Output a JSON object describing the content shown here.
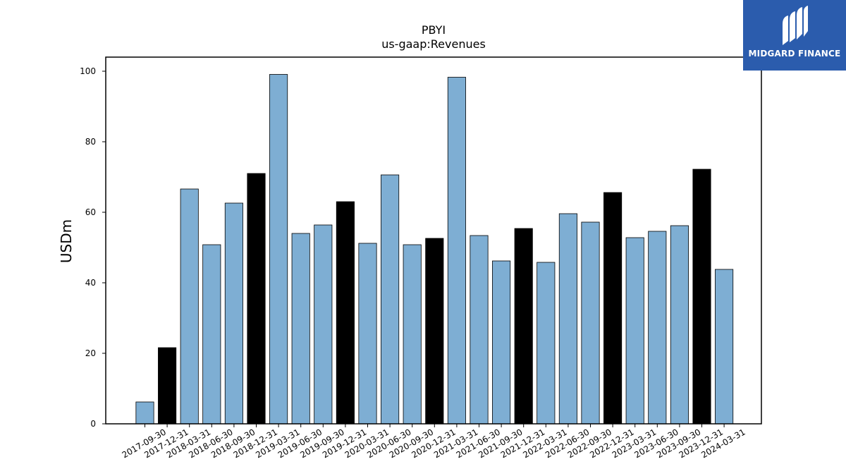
{
  "chart_data": {
    "type": "bar",
    "title": "PBYI",
    "subtitle": "us-gaap:Revenues",
    "xlabel": "",
    "ylabel": "USDm",
    "ylim": [
      0,
      104
    ],
    "yticks": [
      0,
      20,
      40,
      60,
      80,
      100
    ],
    "grid": false,
    "categories": [
      "2017-09-30",
      "2017-12-31",
      "2018-03-31",
      "2018-06-30",
      "2018-09-30",
      "2018-12-31",
      "2019-03-31",
      "2019-06-30",
      "2019-09-30",
      "2019-12-31",
      "2020-03-31",
      "2020-06-30",
      "2020-09-30",
      "2020-12-31",
      "2021-03-31",
      "2021-06-30",
      "2021-09-30",
      "2021-12-31",
      "2022-03-31",
      "2022-06-30",
      "2022-09-30",
      "2022-12-31",
      "2023-03-31",
      "2023-06-30",
      "2023-09-30",
      "2023-12-31",
      "2024-03-31"
    ],
    "values": [
      6.2,
      21.6,
      66.6,
      50.8,
      62.6,
      71.0,
      99.1,
      54.0,
      56.4,
      63.0,
      51.2,
      70.6,
      50.8,
      52.6,
      98.3,
      53.4,
      46.2,
      55.4,
      45.8,
      59.6,
      57.2,
      65.6,
      52.8,
      54.6,
      56.2,
      72.2,
      43.8
    ],
    "annual_flags": [
      false,
      true,
      false,
      false,
      false,
      true,
      false,
      false,
      false,
      true,
      false,
      false,
      false,
      true,
      false,
      false,
      false,
      true,
      false,
      false,
      false,
      true,
      false,
      false,
      false,
      true,
      false
    ],
    "colors": {
      "quarter": "#7eaed3",
      "annual": "#000000",
      "edge": "#000000"
    }
  },
  "logo": {
    "text": "MIDGARD FINANCE",
    "bg": "#2b5cad"
  }
}
